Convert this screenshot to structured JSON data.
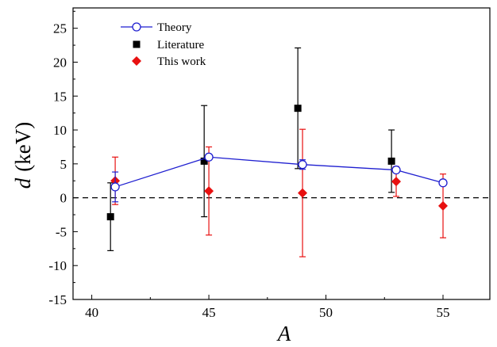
{
  "chart_data": {
    "type": "scatter",
    "xlabel": "A",
    "ylabel_italic": "d",
    "ylabel_unit": "(keV)",
    "xlim": [
      39.2,
      57
    ],
    "ylim": [
      -15,
      28
    ],
    "xticks": [
      40,
      45,
      50,
      55
    ],
    "yticks": [
      -15,
      -10,
      -5,
      0,
      5,
      10,
      15,
      20,
      25
    ],
    "reference_line": {
      "y": 0,
      "style": "dashed"
    },
    "legend_position": "top-left",
    "series": [
      {
        "name": "Theory",
        "kind": "line-open-circle",
        "color": "#1f1fd0",
        "x": [
          41,
          45,
          49,
          53,
          55
        ],
        "y": [
          1.6,
          6.0,
          4.9,
          4.1,
          2.2
        ],
        "err": [
          2.2,
          0,
          0.7,
          0,
          0
        ]
      },
      {
        "name": "Literature",
        "kind": "square",
        "color": "#000000",
        "x": [
          40.8,
          44.8,
          48.8,
          52.8
        ],
        "y": [
          -2.8,
          5.4,
          13.2,
          5.4
        ],
        "err": [
          5.0,
          8.2,
          8.9,
          4.6
        ]
      },
      {
        "name": "This work",
        "kind": "diamond",
        "color": "#e81010",
        "x": [
          41.0,
          45.0,
          49.0,
          53.0,
          55.0
        ],
        "y": [
          2.5,
          1.0,
          0.7,
          2.4,
          -1.2
        ],
        "err": [
          3.5,
          6.5,
          9.4,
          2.2,
          4.7
        ]
      }
    ]
  }
}
